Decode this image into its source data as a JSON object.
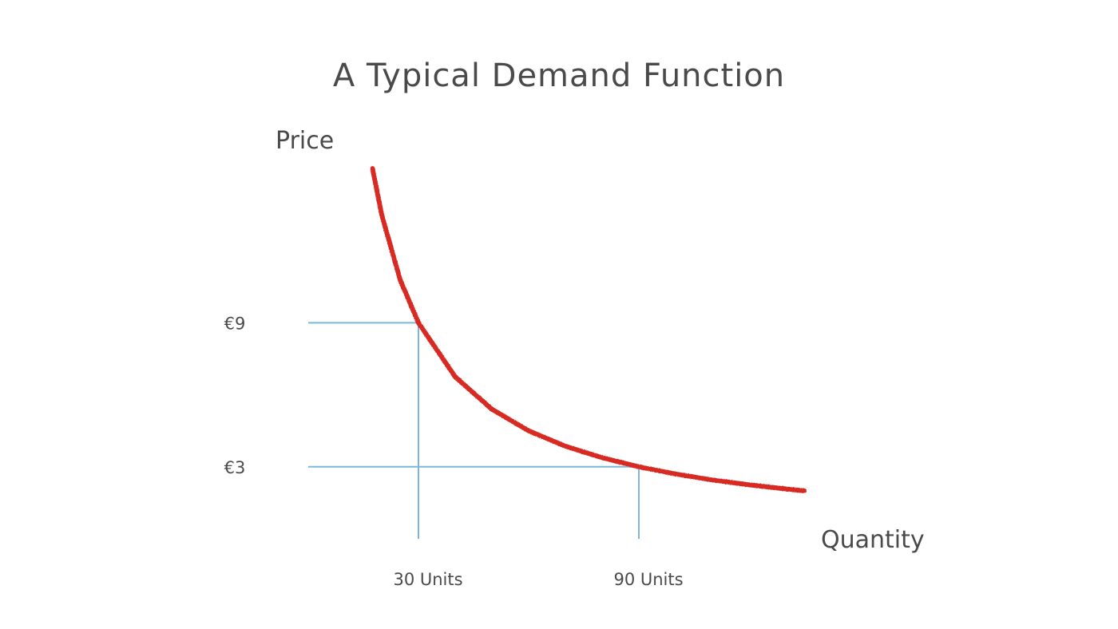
{
  "chart_data": {
    "type": "line",
    "title": "A Typical Demand Function",
    "ylabel": "Price",
    "xlabel": "Quantity",
    "xlim": [
      0,
      135
    ],
    "ylim": [
      0,
      15.5
    ],
    "series": [
      {
        "values_function": "price = 270 / quantity",
        "x": [
          17.5,
          20,
          25,
          30,
          40,
          50,
          60,
          70,
          80,
          90,
          100,
          110,
          120,
          130,
          135
        ],
        "y": [
          15.43,
          13.5,
          10.8,
          9,
          6.75,
          5.4,
          4.5,
          3.86,
          3.38,
          3,
          2.7,
          2.45,
          2.25,
          2.08,
          2.0
        ],
        "color": "#d62a21"
      }
    ],
    "reference_points": [
      {
        "x": 30,
        "y": 9,
        "x_label": "30 Units",
        "y_label": "€9"
      },
      {
        "x": 90,
        "y": 3,
        "x_label": "90 Units",
        "y_label": "€3"
      }
    ],
    "reference_line_color": "#7ab8d8",
    "axis_color": "#555555",
    "grid": false,
    "legend": "none"
  }
}
